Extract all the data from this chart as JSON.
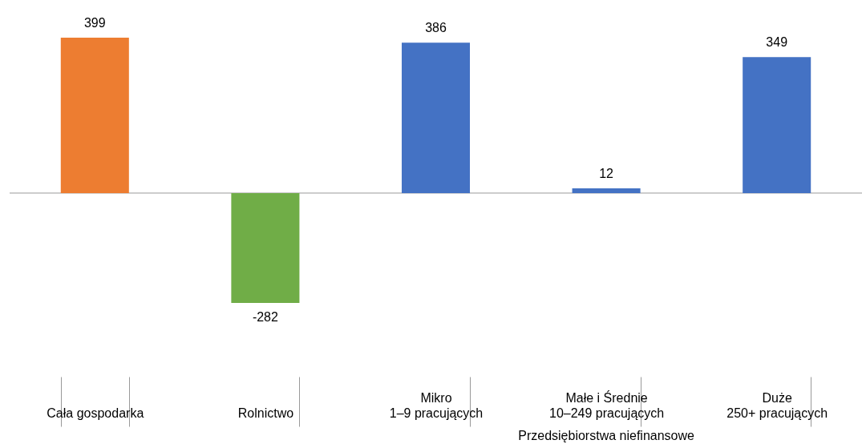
{
  "chart_data": {
    "type": "bar",
    "categories": [
      "Cała gospodarka",
      "Rolnictwo",
      "Mikro\n1–9 pracujących",
      "Małe i Średnie\n10–249 pracujących",
      "Duże\n250+ pracujących"
    ],
    "values": [
      399,
      -282,
      386,
      12,
      349
    ],
    "colors": [
      "#ed7d31",
      "#70ad47",
      "#4472c4",
      "#4472c4",
      "#4472c4"
    ],
    "tick_labels": "x",
    "data_labels": true,
    "annotations": [
      "Przedsiębiorstwa niefinansowe"
    ]
  }
}
